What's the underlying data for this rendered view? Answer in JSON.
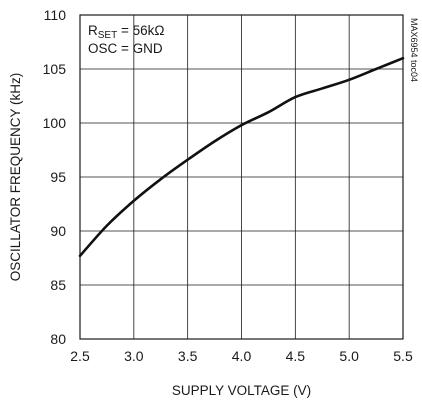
{
  "chart_data": {
    "type": "line",
    "xlabel": "SUPPLY VOLTAGE (V)",
    "ylabel": "OSCILLATOR FREQUENCY (kHz)",
    "xlim": [
      2.5,
      5.5
    ],
    "ylim": [
      80,
      110
    ],
    "xticks": [
      2.5,
      3.0,
      3.5,
      4.0,
      4.5,
      5.0,
      5.5
    ],
    "xtick_labels": [
      "2.5",
      "3.0",
      "3.5",
      "4.0",
      "4.5",
      "5.0",
      "5.5"
    ],
    "yticks": [
      80,
      85,
      90,
      95,
      100,
      105,
      110
    ],
    "ytick_labels": [
      "80",
      "85",
      "90",
      "95",
      "100",
      "105",
      "110"
    ],
    "grid": true,
    "annotations": {
      "line1_main": "R",
      "line1_sub": "SET",
      "line1_rest": " = 56kΩ",
      "line2": "OSC = GND"
    },
    "watermark": "MAX6954 toc04",
    "series": [
      {
        "x": [
          2.5,
          2.75,
          3.0,
          3.25,
          3.5,
          3.75,
          4.0,
          4.25,
          4.5,
          4.75,
          5.0,
          5.25,
          5.5
        ],
        "y": [
          87.7,
          90.5,
          92.8,
          94.8,
          96.6,
          98.3,
          99.8,
          101.0,
          102.4,
          103.2,
          104.0,
          105.0,
          106.0
        ]
      }
    ]
  }
}
